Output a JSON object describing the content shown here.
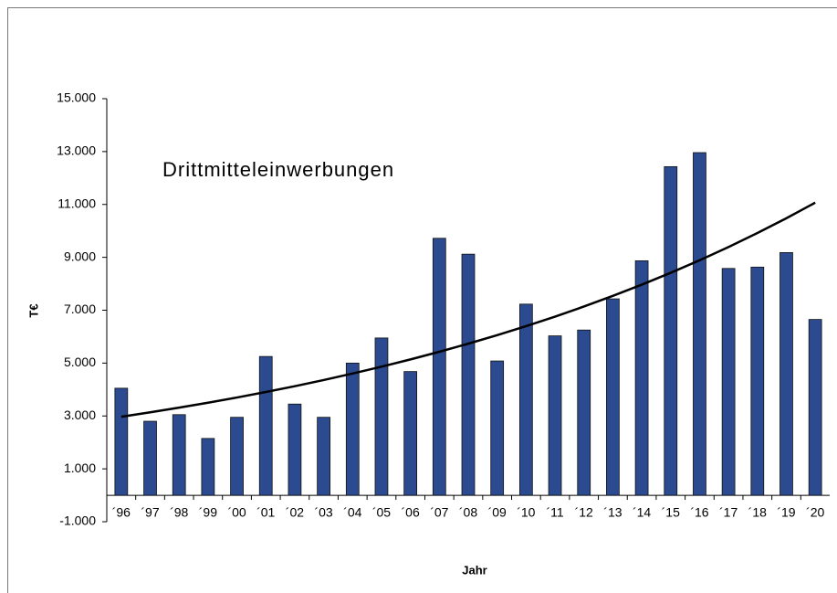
{
  "chart_data": {
    "type": "bar",
    "annotation": "Drittmitteleinwerbungen",
    "y_label": "T€",
    "x_label": "Jahr",
    "categories": [
      "´96",
      "´97",
      "´98",
      "´99",
      "´00",
      "´01",
      "´02",
      "´03",
      "´04",
      "´05",
      "´06",
      "´07",
      "´08",
      "´09",
      "´10",
      "´11",
      "´12",
      "´13",
      "´14",
      "´15",
      "´16",
      "´17",
      "´18",
      "´19",
      "´20"
    ],
    "values": [
      4050,
      2800,
      3050,
      2150,
      2950,
      5250,
      3450,
      2950,
      5000,
      5950,
      4680,
      9720,
      9120,
      5080,
      7230,
      6030,
      6250,
      7430,
      8870,
      12430,
      12960,
      8580,
      8630,
      9180,
      6650
    ],
    "color": "#2b4a8f",
    "trend_values": [
      2970,
      3137,
      3314,
      3501,
      3698,
      3906,
      4126,
      4359,
      4605,
      4864,
      5138,
      5428,
      5734,
      6057,
      6398,
      6758,
      7139,
      7541,
      7966,
      8415,
      8889,
      9390,
      9919,
      10478,
      11068
    ],
    "trend_color": "#000000",
    "ylim": [
      -1000,
      15000
    ],
    "yticks": [
      {
        "value": -1000,
        "label": "-1.000"
      },
      {
        "value": 1000,
        "label": "1.000"
      },
      {
        "value": 3000,
        "label": "3.000"
      },
      {
        "value": 5000,
        "label": "5.000"
      },
      {
        "value": 7000,
        "label": "7.000"
      },
      {
        "value": 9000,
        "label": "9.000"
      },
      {
        "value": 11000,
        "label": "11.000"
      },
      {
        "value": 13000,
        "label": "13.000"
      },
      {
        "value": 15000,
        "label": "15.000"
      }
    ],
    "grid": false
  }
}
